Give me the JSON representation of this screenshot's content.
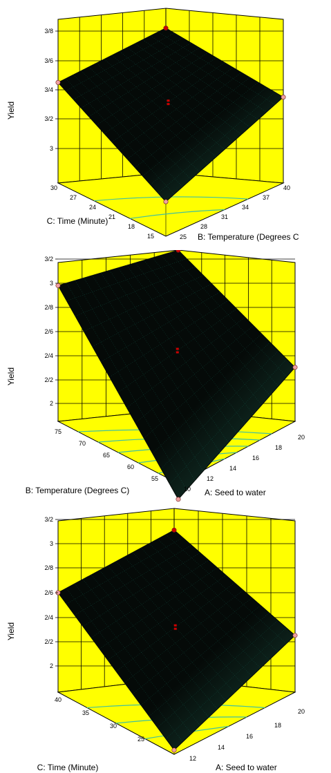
{
  "colors": {
    "wall": "#ffff00",
    "floor": "#ffff00",
    "grid": "#000000",
    "surface_dark": "#050a08",
    "surface_mid": "#1a4a3c",
    "mesh": "#20c0a0",
    "contour": "#40c0a0",
    "design_point_red": "#cc0000",
    "design_point_pink": "#f0a0a0"
  },
  "chart_data": [
    {
      "type": "surface",
      "ylabel": "Yield",
      "z_ticks": [
        "3",
        "3/2",
        "3/4",
        "3/6",
        "3/8"
      ],
      "left_axis": {
        "label": "C: Time (Minute)",
        "ticks": [
          "30",
          "27",
          "24",
          "21",
          "18",
          "15"
        ]
      },
      "right_axis": {
        "label": "B: Temperature (Degrees C",
        "ticks": [
          "25",
          "28",
          "31",
          "34",
          "37",
          "40"
        ]
      },
      "corner_values": {
        "left": 3.45,
        "back": 3.75,
        "right": 3.35,
        "front": 3.0
      },
      "center_value": 3.5
    },
    {
      "type": "surface",
      "ylabel": "Yield",
      "z_ticks": [
        "2",
        "2/2",
        "2/4",
        "2/6",
        "2/8",
        "3",
        "3/2"
      ],
      "left_axis": {
        "label": "B: Temperature (Degrees C)",
        "ticks": [
          "75",
          "70",
          "65",
          "60",
          "55"
        ]
      },
      "right_axis": {
        "label": "A: Seed to water",
        "ticks": [
          "10",
          "12",
          "14",
          "16",
          "18",
          "20"
        ]
      },
      "corner_values": {
        "left": 2.98,
        "back": 3.17,
        "right": 2.3,
        "front": 1.72
      },
      "center_value": 2.5
    },
    {
      "type": "surface",
      "ylabel": "Yield",
      "z_ticks": [
        "2",
        "2/2",
        "2/4",
        "2/6",
        "2/8",
        "3",
        "3/2"
      ],
      "left_axis": {
        "label": "C: Time (Minute)",
        "ticks": [
          "40",
          "35",
          "30",
          "25"
        ]
      },
      "right_axis": {
        "label": "A: Seed to water",
        "ticks": [
          "12",
          "14",
          "16",
          "18",
          "20"
        ]
      },
      "corner_values": {
        "left": 2.6,
        "back": 3.0,
        "right": 2.25,
        "front": 1.82
      },
      "center_value": 2.5
    }
  ]
}
